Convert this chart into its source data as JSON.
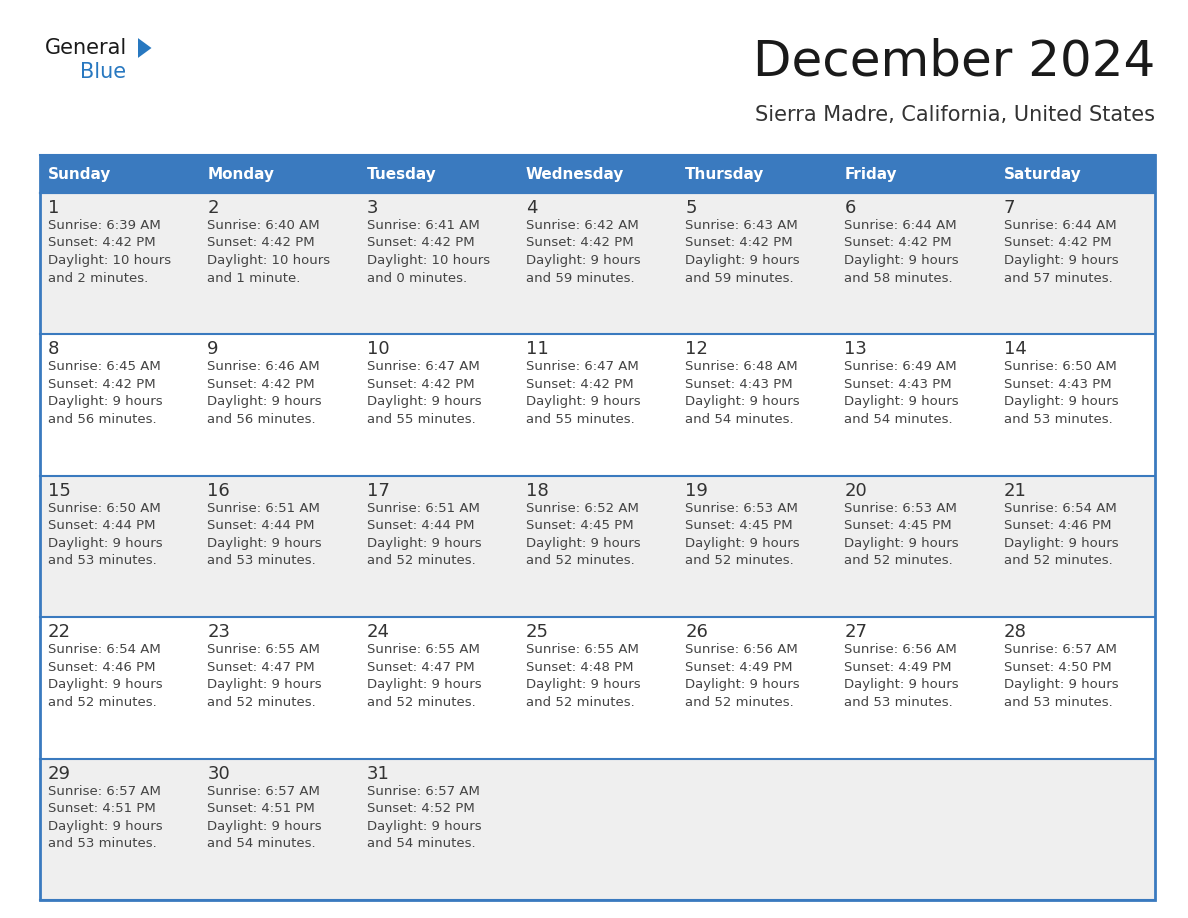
{
  "title": "December 2024",
  "subtitle": "Sierra Madre, California, United States",
  "days_of_week": [
    "Sunday",
    "Monday",
    "Tuesday",
    "Wednesday",
    "Thursday",
    "Friday",
    "Saturday"
  ],
  "header_bg_color": "#3a7abf",
  "header_text_color": "#ffffff",
  "cell_bg_odd": "#efefef",
  "cell_bg_even": "#ffffff",
  "cell_border_color": "#3a7abf",
  "day_num_color": "#333333",
  "cell_text_color": "#444444",
  "title_color": "#1a1a1a",
  "subtitle_color": "#333333",
  "logo_general_color": "#1a1a1a",
  "logo_blue_color": "#2878c0",
  "weeks": [
    [
      {
        "day": 1,
        "sunrise": "6:39 AM",
        "sunset": "4:42 PM",
        "daylight": "10 hours and 2 minutes."
      },
      {
        "day": 2,
        "sunrise": "6:40 AM",
        "sunset": "4:42 PM",
        "daylight": "10 hours and 1 minute."
      },
      {
        "day": 3,
        "sunrise": "6:41 AM",
        "sunset": "4:42 PM",
        "daylight": "10 hours and 0 minutes."
      },
      {
        "day": 4,
        "sunrise": "6:42 AM",
        "sunset": "4:42 PM",
        "daylight": "9 hours and 59 minutes."
      },
      {
        "day": 5,
        "sunrise": "6:43 AM",
        "sunset": "4:42 PM",
        "daylight": "9 hours and 59 minutes."
      },
      {
        "day": 6,
        "sunrise": "6:44 AM",
        "sunset": "4:42 PM",
        "daylight": "9 hours and 58 minutes."
      },
      {
        "day": 7,
        "sunrise": "6:44 AM",
        "sunset": "4:42 PM",
        "daylight": "9 hours and 57 minutes."
      }
    ],
    [
      {
        "day": 8,
        "sunrise": "6:45 AM",
        "sunset": "4:42 PM",
        "daylight": "9 hours and 56 minutes."
      },
      {
        "day": 9,
        "sunrise": "6:46 AM",
        "sunset": "4:42 PM",
        "daylight": "9 hours and 56 minutes."
      },
      {
        "day": 10,
        "sunrise": "6:47 AM",
        "sunset": "4:42 PM",
        "daylight": "9 hours and 55 minutes."
      },
      {
        "day": 11,
        "sunrise": "6:47 AM",
        "sunset": "4:42 PM",
        "daylight": "9 hours and 55 minutes."
      },
      {
        "day": 12,
        "sunrise": "6:48 AM",
        "sunset": "4:43 PM",
        "daylight": "9 hours and 54 minutes."
      },
      {
        "day": 13,
        "sunrise": "6:49 AM",
        "sunset": "4:43 PM",
        "daylight": "9 hours and 54 minutes."
      },
      {
        "day": 14,
        "sunrise": "6:50 AM",
        "sunset": "4:43 PM",
        "daylight": "9 hours and 53 minutes."
      }
    ],
    [
      {
        "day": 15,
        "sunrise": "6:50 AM",
        "sunset": "4:44 PM",
        "daylight": "9 hours and 53 minutes."
      },
      {
        "day": 16,
        "sunrise": "6:51 AM",
        "sunset": "4:44 PM",
        "daylight": "9 hours and 53 minutes."
      },
      {
        "day": 17,
        "sunrise": "6:51 AM",
        "sunset": "4:44 PM",
        "daylight": "9 hours and 52 minutes."
      },
      {
        "day": 18,
        "sunrise": "6:52 AM",
        "sunset": "4:45 PM",
        "daylight": "9 hours and 52 minutes."
      },
      {
        "day": 19,
        "sunrise": "6:53 AM",
        "sunset": "4:45 PM",
        "daylight": "9 hours and 52 minutes."
      },
      {
        "day": 20,
        "sunrise": "6:53 AM",
        "sunset": "4:45 PM",
        "daylight": "9 hours and 52 minutes."
      },
      {
        "day": 21,
        "sunrise": "6:54 AM",
        "sunset": "4:46 PM",
        "daylight": "9 hours and 52 minutes."
      }
    ],
    [
      {
        "day": 22,
        "sunrise": "6:54 AM",
        "sunset": "4:46 PM",
        "daylight": "9 hours and 52 minutes."
      },
      {
        "day": 23,
        "sunrise": "6:55 AM",
        "sunset": "4:47 PM",
        "daylight": "9 hours and 52 minutes."
      },
      {
        "day": 24,
        "sunrise": "6:55 AM",
        "sunset": "4:47 PM",
        "daylight": "9 hours and 52 minutes."
      },
      {
        "day": 25,
        "sunrise": "6:55 AM",
        "sunset": "4:48 PM",
        "daylight": "9 hours and 52 minutes."
      },
      {
        "day": 26,
        "sunrise": "6:56 AM",
        "sunset": "4:49 PM",
        "daylight": "9 hours and 52 minutes."
      },
      {
        "day": 27,
        "sunrise": "6:56 AM",
        "sunset": "4:49 PM",
        "daylight": "9 hours and 53 minutes."
      },
      {
        "day": 28,
        "sunrise": "6:57 AM",
        "sunset": "4:50 PM",
        "daylight": "9 hours and 53 minutes."
      }
    ],
    [
      {
        "day": 29,
        "sunrise": "6:57 AM",
        "sunset": "4:51 PM",
        "daylight": "9 hours and 53 minutes."
      },
      {
        "day": 30,
        "sunrise": "6:57 AM",
        "sunset": "4:51 PM",
        "daylight": "9 hours and 54 minutes."
      },
      {
        "day": 31,
        "sunrise": "6:57 AM",
        "sunset": "4:52 PM",
        "daylight": "9 hours and 54 minutes."
      },
      null,
      null,
      null,
      null
    ]
  ]
}
